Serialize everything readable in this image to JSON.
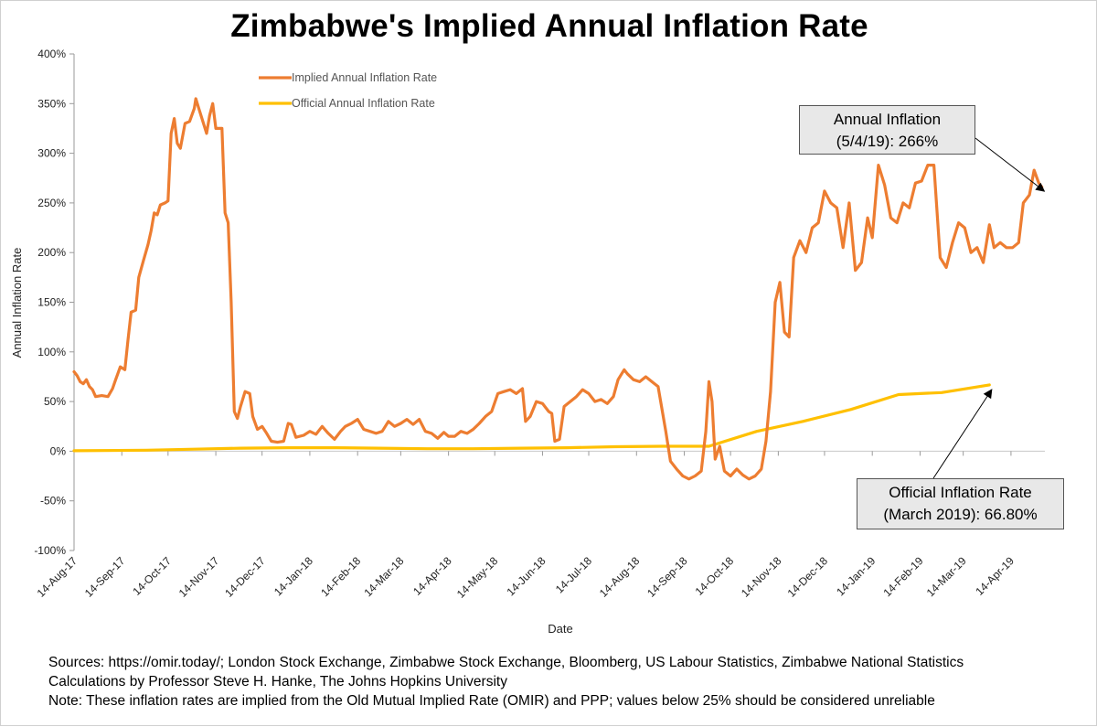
{
  "chart_data": {
    "type": "line",
    "title": "Zimbabwe's Implied Annual Inflation Rate",
    "xlabel": "Date",
    "ylabel": "Annual Inflation Rate",
    "ylim": [
      -100,
      400
    ],
    "yticks": [
      "-100%",
      "-50%",
      "0%",
      "50%",
      "100%",
      "150%",
      "200%",
      "250%",
      "300%",
      "350%",
      "400%"
    ],
    "x_tick_labels": [
      "14-Aug-17",
      "14-Sep-17",
      "14-Oct-17",
      "14-Nov-17",
      "14-Dec-17",
      "14-Jan-18",
      "14-Feb-18",
      "14-Mar-18",
      "14-Apr-18",
      "14-May-18",
      "14-Jun-18",
      "14-Jul-18",
      "14-Aug-18",
      "14-Sep-18",
      "14-Oct-18",
      "14-Nov-18",
      "14-Dec-18",
      "14-Jan-19",
      "14-Feb-19",
      "14-Mar-19",
      "14-Apr-19"
    ],
    "xlim": [
      "2017-08-14",
      "2019-05-06"
    ],
    "grid": false,
    "legend_placement": "top-left",
    "series": [
      {
        "name": "Implied Annual Inflation Rate",
        "color": "#ED7D31",
        "points": [
          [
            "2017-08-14",
            80
          ],
          [
            "2017-08-16",
            76
          ],
          [
            "2017-08-18",
            70
          ],
          [
            "2017-08-20",
            68
          ],
          [
            "2017-08-22",
            72
          ],
          [
            "2017-08-24",
            65
          ],
          [
            "2017-08-26",
            62
          ],
          [
            "2017-08-28",
            55
          ],
          [
            "2017-09-01",
            56
          ],
          [
            "2017-09-05",
            55
          ],
          [
            "2017-09-08",
            63
          ],
          [
            "2017-09-10",
            72
          ],
          [
            "2017-09-13",
            85
          ],
          [
            "2017-09-16",
            82
          ],
          [
            "2017-09-18",
            112
          ],
          [
            "2017-09-20",
            140
          ],
          [
            "2017-09-23",
            142
          ],
          [
            "2017-09-25",
            175
          ],
          [
            "2017-09-28",
            192
          ],
          [
            "2017-10-01",
            208
          ],
          [
            "2017-10-03",
            222
          ],
          [
            "2017-10-05",
            240
          ],
          [
            "2017-10-07",
            238
          ],
          [
            "2017-10-09",
            248
          ],
          [
            "2017-10-12",
            250
          ],
          [
            "2017-10-14",
            252
          ],
          [
            "2017-10-16",
            320
          ],
          [
            "2017-10-18",
            335
          ],
          [
            "2017-10-20",
            310
          ],
          [
            "2017-10-22",
            305
          ],
          [
            "2017-10-25",
            330
          ],
          [
            "2017-10-28",
            332
          ],
          [
            "2017-10-31",
            345
          ],
          [
            "2017-11-01",
            355
          ],
          [
            "2017-11-03",
            345
          ],
          [
            "2017-11-06",
            330
          ],
          [
            "2017-11-08",
            320
          ],
          [
            "2017-11-10",
            338
          ],
          [
            "2017-11-12",
            350
          ],
          [
            "2017-11-14",
            325
          ],
          [
            "2017-11-18",
            325
          ],
          [
            "2017-11-20",
            240
          ],
          [
            "2017-11-22",
            230
          ],
          [
            "2017-11-24",
            150
          ],
          [
            "2017-11-26",
            40
          ],
          [
            "2017-11-28",
            33
          ],
          [
            "2017-11-30",
            45
          ],
          [
            "2017-12-03",
            60
          ],
          [
            "2017-12-06",
            58
          ],
          [
            "2017-12-08",
            35
          ],
          [
            "2017-12-11",
            22
          ],
          [
            "2017-12-14",
            25
          ],
          [
            "2017-12-17",
            18
          ],
          [
            "2017-12-20",
            10
          ],
          [
            "2017-12-24",
            9
          ],
          [
            "2017-12-28",
            10
          ],
          [
            "2017-12-31",
            28
          ],
          [
            "2018-01-02",
            27
          ],
          [
            "2018-01-05",
            14
          ],
          [
            "2018-01-10",
            16
          ],
          [
            "2018-01-14",
            20
          ],
          [
            "2018-01-18",
            17
          ],
          [
            "2018-01-22",
            25
          ],
          [
            "2018-01-26",
            18
          ],
          [
            "2018-01-30",
            12
          ],
          [
            "2018-02-03",
            20
          ],
          [
            "2018-02-06",
            25
          ],
          [
            "2018-02-10",
            28
          ],
          [
            "2018-02-14",
            32
          ],
          [
            "2018-02-18",
            22
          ],
          [
            "2018-02-22",
            20
          ],
          [
            "2018-02-26",
            18
          ],
          [
            "2018-03-02",
            20
          ],
          [
            "2018-03-06",
            30
          ],
          [
            "2018-03-10",
            25
          ],
          [
            "2018-03-14",
            28
          ],
          [
            "2018-03-18",
            32
          ],
          [
            "2018-03-22",
            27
          ],
          [
            "2018-03-26",
            32
          ],
          [
            "2018-03-30",
            20
          ],
          [
            "2018-04-03",
            18
          ],
          [
            "2018-04-07",
            13
          ],
          [
            "2018-04-11",
            19
          ],
          [
            "2018-04-14",
            15
          ],
          [
            "2018-04-18",
            15
          ],
          [
            "2018-04-22",
            20
          ],
          [
            "2018-04-26",
            18
          ],
          [
            "2018-04-30",
            22
          ],
          [
            "2018-05-04",
            28
          ],
          [
            "2018-05-08",
            35
          ],
          [
            "2018-05-12",
            40
          ],
          [
            "2018-05-16",
            58
          ],
          [
            "2018-05-20",
            60
          ],
          [
            "2018-05-24",
            62
          ],
          [
            "2018-05-28",
            58
          ],
          [
            "2018-06-01",
            63
          ],
          [
            "2018-06-03",
            30
          ],
          [
            "2018-06-06",
            35
          ],
          [
            "2018-06-10",
            50
          ],
          [
            "2018-06-14",
            48
          ],
          [
            "2018-06-18",
            40
          ],
          [
            "2018-06-20",
            38
          ],
          [
            "2018-06-22",
            10
          ],
          [
            "2018-06-25",
            12
          ],
          [
            "2018-06-28",
            45
          ],
          [
            "2018-07-02",
            50
          ],
          [
            "2018-07-06",
            55
          ],
          [
            "2018-07-10",
            62
          ],
          [
            "2018-07-14",
            58
          ],
          [
            "2018-07-18",
            50
          ],
          [
            "2018-07-22",
            52
          ],
          [
            "2018-07-26",
            48
          ],
          [
            "2018-07-30",
            55
          ],
          [
            "2018-08-02",
            72
          ],
          [
            "2018-08-06",
            82
          ],
          [
            "2018-08-08",
            78
          ],
          [
            "2018-08-12",
            72
          ],
          [
            "2018-08-16",
            70
          ],
          [
            "2018-08-20",
            75
          ],
          [
            "2018-08-24",
            70
          ],
          [
            "2018-08-28",
            65
          ],
          [
            "2018-09-02",
            20
          ],
          [
            "2018-09-05",
            -10
          ],
          [
            "2018-09-09",
            -18
          ],
          [
            "2018-09-13",
            -25
          ],
          [
            "2018-09-17",
            -28
          ],
          [
            "2018-09-21",
            -25
          ],
          [
            "2018-09-25",
            -20
          ],
          [
            "2018-09-28",
            20
          ],
          [
            "2018-09-30",
            70
          ],
          [
            "2018-10-02",
            50
          ],
          [
            "2018-10-04",
            -8
          ],
          [
            "2018-10-07",
            5
          ],
          [
            "2018-10-10",
            -20
          ],
          [
            "2018-10-14",
            -25
          ],
          [
            "2018-10-18",
            -18
          ],
          [
            "2018-10-22",
            -24
          ],
          [
            "2018-10-26",
            -28
          ],
          [
            "2018-10-30",
            -25
          ],
          [
            "2018-11-03",
            -18
          ],
          [
            "2018-11-06",
            10
          ],
          [
            "2018-11-09",
            60
          ],
          [
            "2018-11-12",
            150
          ],
          [
            "2018-11-15",
            170
          ],
          [
            "2018-11-18",
            120
          ],
          [
            "2018-11-21",
            115
          ],
          [
            "2018-11-24",
            195
          ],
          [
            "2018-11-28",
            212
          ],
          [
            "2018-12-02",
            200
          ],
          [
            "2018-12-06",
            225
          ],
          [
            "2018-12-10",
            230
          ],
          [
            "2018-12-14",
            262
          ],
          [
            "2018-12-18",
            250
          ],
          [
            "2018-12-22",
            245
          ],
          [
            "2018-12-26",
            205
          ],
          [
            "2018-12-30",
            250
          ],
          [
            "2019-01-03",
            182
          ],
          [
            "2019-01-07",
            190
          ],
          [
            "2019-01-11",
            235
          ],
          [
            "2019-01-14",
            215
          ],
          [
            "2019-01-18",
            288
          ],
          [
            "2019-01-22",
            268
          ],
          [
            "2019-01-26",
            235
          ],
          [
            "2019-01-30",
            230
          ],
          [
            "2019-02-03",
            250
          ],
          [
            "2019-02-07",
            245
          ],
          [
            "2019-02-11",
            270
          ],
          [
            "2019-02-15",
            272
          ],
          [
            "2019-02-19",
            288
          ],
          [
            "2019-02-23",
            288
          ],
          [
            "2019-02-27",
            195
          ],
          [
            "2019-03-03",
            185
          ],
          [
            "2019-03-07",
            210
          ],
          [
            "2019-03-11",
            230
          ],
          [
            "2019-03-15",
            225
          ],
          [
            "2019-03-19",
            200
          ],
          [
            "2019-03-23",
            205
          ],
          [
            "2019-03-27",
            190
          ],
          [
            "2019-03-31",
            228
          ],
          [
            "2019-04-03",
            205
          ],
          [
            "2019-04-07",
            210
          ],
          [
            "2019-04-11",
            205
          ],
          [
            "2019-04-15",
            205
          ],
          [
            "2019-04-19",
            210
          ],
          [
            "2019-04-22",
            250
          ],
          [
            "2019-04-26",
            258
          ],
          [
            "2019-04-29",
            283
          ],
          [
            "2019-05-02",
            270
          ],
          [
            "2019-05-04",
            266
          ]
        ]
      },
      {
        "name": "Official Annual Inflation Rate",
        "color": "#FFC000",
        "points": [
          [
            "2017-08-14",
            0.5
          ],
          [
            "2017-09-30",
            1
          ],
          [
            "2017-10-31",
            2
          ],
          [
            "2017-11-30",
            3
          ],
          [
            "2017-12-31",
            3.5
          ],
          [
            "2018-01-31",
            3.5
          ],
          [
            "2018-02-28",
            3
          ],
          [
            "2018-03-31",
            2.5
          ],
          [
            "2018-04-30",
            2.5
          ],
          [
            "2018-05-31",
            3
          ],
          [
            "2018-06-30",
            3.5
          ],
          [
            "2018-07-31",
            4.5
          ],
          [
            "2018-08-31",
            5
          ],
          [
            "2018-09-30",
            5
          ],
          [
            "2018-10-31",
            20
          ],
          [
            "2018-11-30",
            30
          ],
          [
            "2018-12-31",
            42
          ],
          [
            "2019-01-31",
            57
          ],
          [
            "2019-02-28",
            59
          ],
          [
            "2019-03-31",
            66.8
          ]
        ]
      }
    ],
    "annotations": [
      {
        "line1": "Annual Inflation",
        "line2": "(5/4/19): 266%"
      },
      {
        "line1": "Official Inflation Rate",
        "line2": "(March 2019): 66.80%"
      }
    ]
  },
  "sources": {
    "line1": "Sources: https://omir.today/; London Stock Exchange, Zimbabwe Stock Exchange, Bloomberg, US Labour Statistics, Zimbabwe National Statistics",
    "line2": "Calculations by Professor Steve H. Hanke, The Johns Hopkins University",
    "line3": "Note: These inflation rates are implied from the Old Mutual Implied Rate (OMIR) and PPP; values below 25% should be considered unreliable"
  }
}
